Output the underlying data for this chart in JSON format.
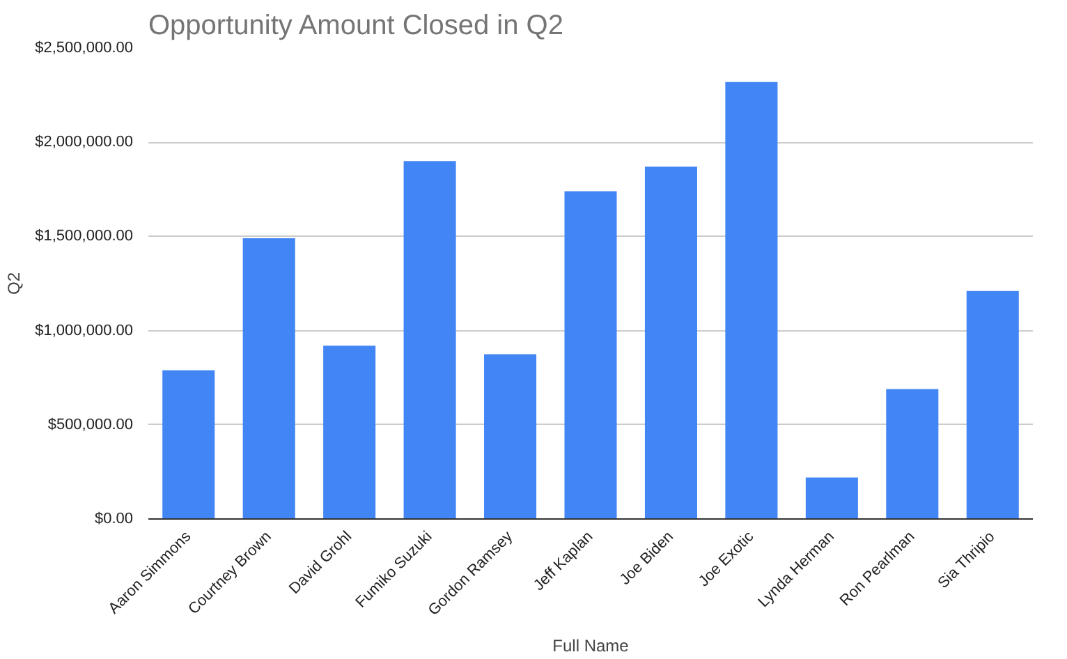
{
  "chart_data": {
    "type": "bar",
    "title": "Opportunity Amount Closed in Q2",
    "xlabel": "Full Name",
    "ylabel": "Q2",
    "categories": [
      "Aaron Simmons",
      "Courtney Brown",
      "David Grohl",
      "Fumiko Suzuki",
      "Gordon Ramsey",
      "Jeff Kaplan",
      "Joe Biden",
      "Joe Exotic",
      "Lynda Herman",
      "Ron Pearlman",
      "Sia Thripio"
    ],
    "values": [
      790000,
      1490000,
      920000,
      1900000,
      875000,
      1740000,
      1870000,
      2320000,
      220000,
      690000,
      1210000
    ],
    "color": "#4285f4",
    "ylim": [
      0,
      2500000
    ],
    "yticks": [
      {
        "value": 0,
        "label": "$0.00"
      },
      {
        "value": 500000,
        "label": "$500,000.00"
      },
      {
        "value": 1000000,
        "label": "$1,000,000.00"
      },
      {
        "value": 1500000,
        "label": "$1,500,000.00"
      },
      {
        "value": 2000000,
        "label": "$2,000,000.00"
      },
      {
        "value": 2500000,
        "label": "$2,500,000.00"
      }
    ],
    "grid": "y"
  }
}
